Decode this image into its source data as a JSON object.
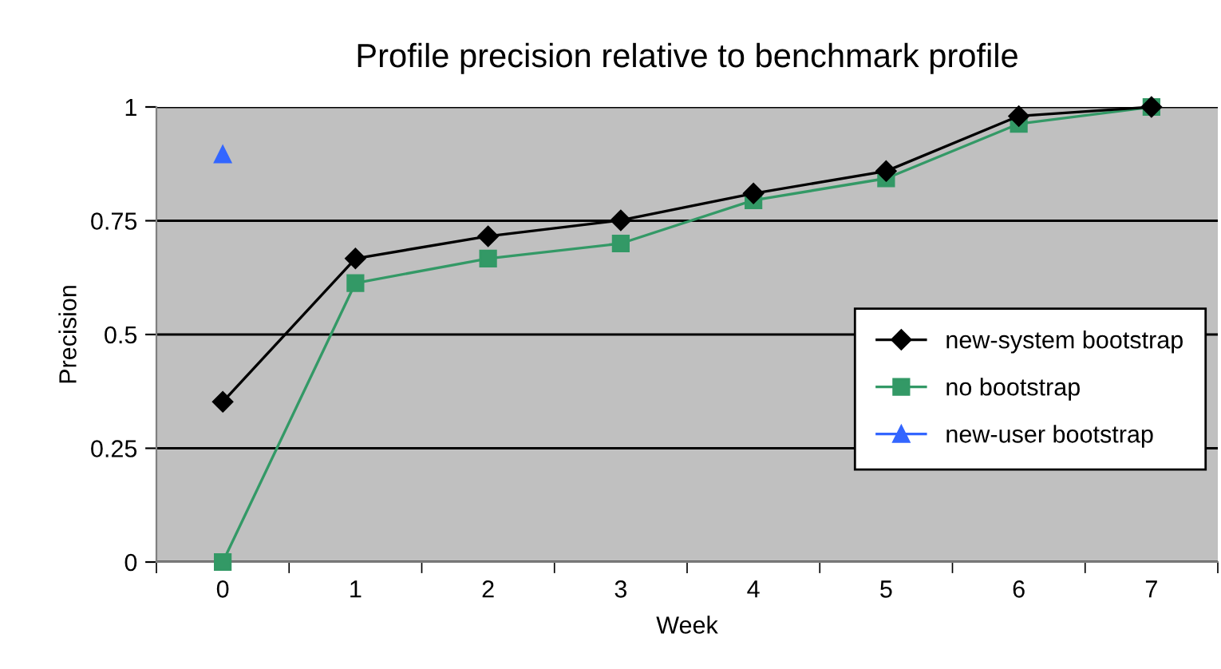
{
  "chart_data": {
    "type": "line",
    "title": "Profile precision relative to benchmark profile",
    "xlabel": "Week",
    "ylabel": "Precision",
    "categories": [
      "0",
      "1",
      "2",
      "3",
      "4",
      "5",
      "6",
      "7"
    ],
    "series": [
      {
        "name": "new-system bootstrap",
        "color": "#000000",
        "marker": "diamond",
        "values": [
          0.352,
          0.667,
          0.716,
          0.751,
          0.81,
          0.859,
          0.98,
          1.0
        ]
      },
      {
        "name": "no bootstrap",
        "color": "#339966",
        "marker": "square",
        "values": [
          0,
          0.613,
          0.667,
          0.7,
          0.795,
          0.843,
          0.963,
          1.0
        ]
      },
      {
        "name": "new-user bootstrap",
        "color": "#3366ff",
        "marker": "triangle",
        "values": [
          0.896,
          null,
          null,
          null,
          null,
          null,
          null,
          null
        ]
      }
    ],
    "ylim": [
      0,
      1
    ],
    "yticks": [
      0,
      0.75,
      0.5,
      0.25,
      1
    ],
    "grid": "y",
    "legend": "right",
    "line_style": "solid"
  }
}
